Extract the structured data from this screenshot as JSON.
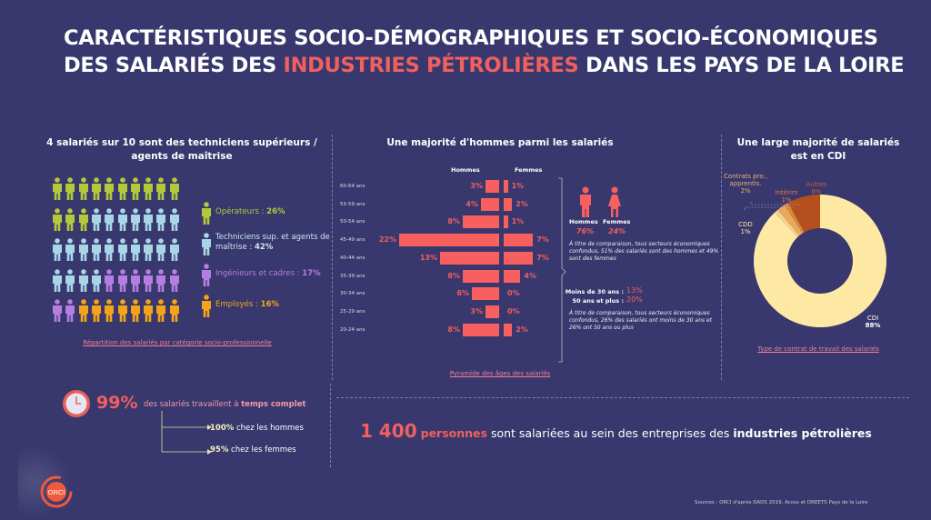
{
  "title": {
    "line1": "CARACTÉRISTIQUES SOCIO-DÉMOGRAPHIQUES ET SOCIO-ÉCONOMIQUES",
    "line2_a": "DES SALARIÉS DES ",
    "line2_hl": "INDUSTRIES PÉTROLIÈRES",
    "line2_b": " DANS LES PAYS DE LA LOIRE"
  },
  "csp": {
    "title": "4 salariés sur 10 sont des techniciens supérieurs / agents de maîtrise",
    "link": "Répartition des salariés par catégorie socio-professionnelle",
    "categories": [
      {
        "label": "Opérateurs : ",
        "value": "26%",
        "count": 13,
        "color": "#b4c93a"
      },
      {
        "label": "Techniciens sup. et agents de maîtrise : ",
        "value": "42%",
        "count": 21,
        "color": "#a9d6e6"
      },
      {
        "label": "Ingénieurs et cadres : ",
        "value": "17%",
        "count": 8,
        "color": "#b57ee0"
      },
      {
        "label": "Employés : ",
        "value": "16%",
        "count": 8,
        "color": "#f5a418"
      }
    ]
  },
  "pyramid": {
    "title": "Une majorité d'hommes parmi les salariés",
    "men_label": "Hommes",
    "women_label": "Femmes",
    "link": "Pyramide des âges des salariés",
    "chart_data": {
      "type": "bar",
      "categories": [
        "60-64 ans",
        "55-59 ans",
        "50-54 ans",
        "45-49 ans",
        "40-44 ans",
        "35-39 ans",
        "30-34 ans",
        "25-29 ans",
        "20-24 ans"
      ],
      "series": [
        {
          "name": "Hommes",
          "values": [
            3,
            4,
            8,
            22,
            13,
            8,
            6,
            3,
            8
          ]
        },
        {
          "name": "Femmes",
          "values": [
            1,
            2,
            1,
            7,
            7,
            4,
            0,
            0,
            2
          ]
        }
      ],
      "unit": "%"
    }
  },
  "gender": {
    "men": "Hommes",
    "women": "Femmes",
    "men_pct": "76%",
    "women_pct": "24%",
    "comparison": "À titre de comparaison, tous secteurs économiques confondus, 51% des salariés sont des hommes et 49% sont des femmes",
    "under30_label": "Moins de 30 ans : ",
    "under30": "13%",
    "over50_label": "50 ans et plus : ",
    "over50": "20%",
    "comparison2": "À titre de comparaison, tous secteurs économiques confondus, 26% des salariés ont moins de 30 ans et 26% ont 50 ans ou plus"
  },
  "contract": {
    "title": "Une large majorité de salariés est en CDI",
    "link": "Type de contrat de travail des salariés",
    "chart_data": {
      "type": "pie",
      "slices": [
        {
          "label": "CDI",
          "value": 88,
          "color": "#fde9a4"
        },
        {
          "label": "CDD",
          "value": 1,
          "color": "#f6d38a"
        },
        {
          "label": "Contrats pro., apprentis.",
          "value": 2,
          "color": "#e8a95a"
        },
        {
          "label": "Intérim",
          "value": 1,
          "color": "#d48a3c"
        },
        {
          "label": "Autres",
          "value": 8,
          "color": "#b5501e"
        }
      ]
    },
    "labels": {
      "cdi": "CDI",
      "cdi_v": "88%",
      "cdd": "CDD",
      "cdd_v": "1%",
      "pro": "Contrats pro., apprentis.",
      "pro_v": "2%",
      "interim": "Intérim",
      "interim_v": "1%",
      "autres": "Autres",
      "autres_v": "8%"
    }
  },
  "fulltime": {
    "big": "99%",
    "text": "des salariés travaillent à ",
    "bold": "temps complet",
    "men_v": "100%",
    "men_t": " chez les hommes",
    "women_v": "95%",
    "women_t": " chez les femmes"
  },
  "headline": {
    "num": "1 400",
    "word": "personnes",
    "mid": " sont salariées au sein des entreprises des ",
    "bold": "industries pétrolières"
  },
  "logo": "ORCI",
  "source": "Sources : ORCI d'après DADS 2019, Acoss et DREETS Pays de la Loire"
}
